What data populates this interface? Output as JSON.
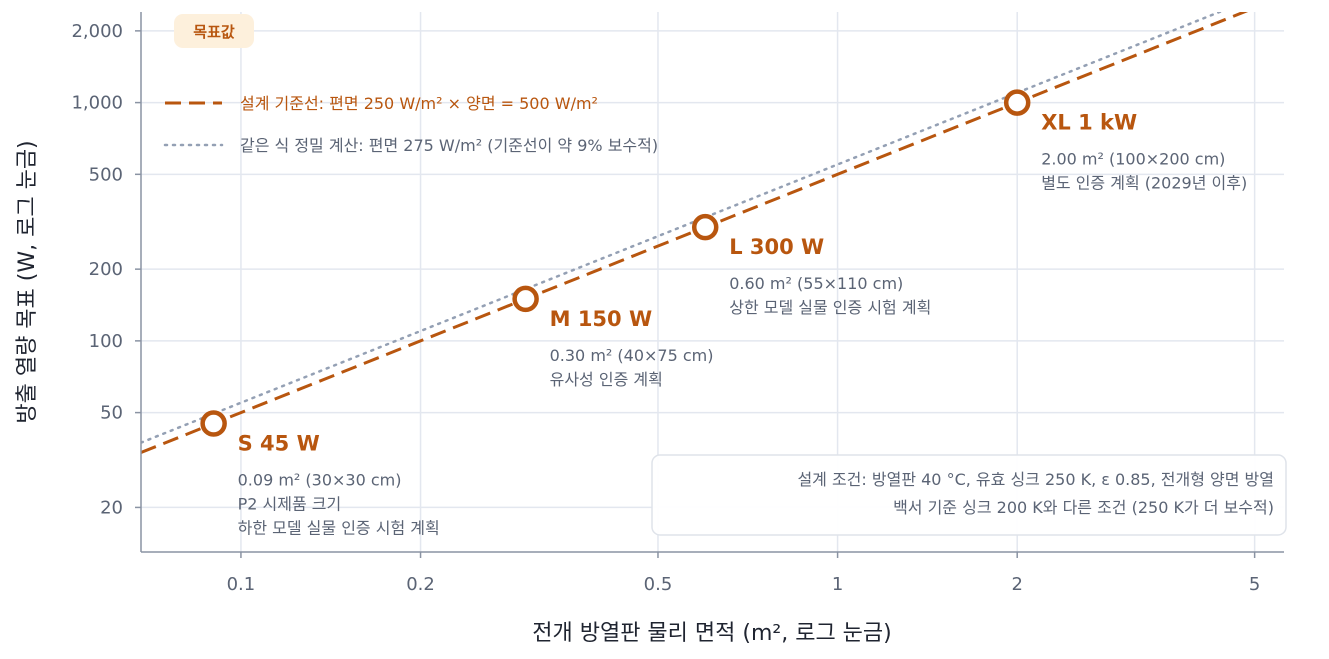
{
  "chart_data": {
    "type": "line",
    "title": "",
    "xlabel": "전개 방열판 물리 면적 (m², 로그 눈금)",
    "ylabel": "방출 열량 목표 (W, 로그 눈금)",
    "xscale": "log",
    "yscale": "log",
    "xlim": [
      0.068,
      5.6
    ],
    "ylim": [
      13,
      2400
    ],
    "xticks": [
      0.1,
      0.2,
      0.5,
      1,
      2,
      5
    ],
    "xtick_labels": [
      "0.1",
      "0.2",
      "0.5",
      "1",
      "2",
      "5"
    ],
    "yticks": [
      20,
      50,
      100,
      200,
      500,
      1000,
      2000
    ],
    "ytick_labels": [
      "20",
      "50",
      "100",
      "200",
      "500",
      "1,000",
      "2,000"
    ],
    "grid": true,
    "legend_position": "top-left",
    "badge": "목표값",
    "series": [
      {
        "name": "설계 기준선: 편면 250 W/m² × 양면 = 500 W/m²",
        "style": "dashed",
        "color": "#b8560f",
        "slope_w_per_m2": 500
      },
      {
        "name": "같은 식 정밀 계산: 편면 275 W/m² (기준선이 약 9% 보수적)",
        "style": "dotted",
        "color": "#94a0b4",
        "slope_w_per_m2": 550
      }
    ],
    "points": [
      {
        "x": 0.09,
        "y": 45,
        "label": "S  45 W",
        "notes": [
          "0.09 m² (30×30 cm)",
          "P2 시제품 크기",
          "하한 모델 실물 인증 시험 계획"
        ]
      },
      {
        "x": 0.3,
        "y": 150,
        "label": "M  150 W",
        "notes": [
          "0.30 m² (40×75 cm)",
          "유사성 인증 계획"
        ]
      },
      {
        "x": 0.6,
        "y": 300,
        "label": "L  300 W",
        "notes": [
          "0.60 m² (55×110 cm)",
          "상한 모델 실물 인증 시험 계획"
        ]
      },
      {
        "x": 2.0,
        "y": 1000,
        "label": "XL  1 kW",
        "notes": [
          "2.00 m² (100×200 cm)",
          "별도 인증 계획 (2029년 이후)"
        ]
      }
    ],
    "conditions": [
      "설계 조건: 방열판 40 °C, 유효 싱크 250 K, ε 0.85, 전개형 양면 방열",
      "백서 기준 싱크 200 K와 다른 조건 (250 K가 더 보수적)"
    ],
    "colors": {
      "accent": "#b8560f",
      "precise": "#94a0b4",
      "grid": "#e3e7ef",
      "axis": "#8a93a3",
      "badge_bg": "#fdf0dc"
    }
  }
}
